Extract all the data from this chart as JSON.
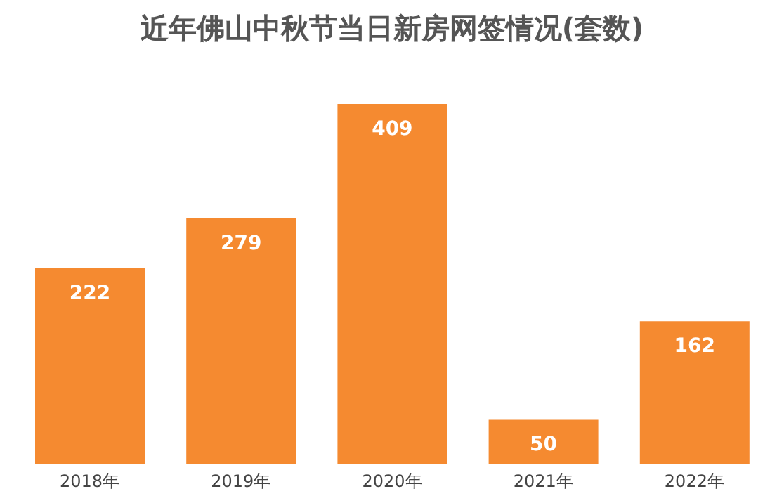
{
  "chart_data": {
    "type": "bar",
    "title": "近年佛山中秋节当日新房网签情况(套数)",
    "categories": [
      "2018年",
      "2019年",
      "2020年",
      "2021年",
      "2022年"
    ],
    "values": [
      222,
      279,
      409,
      50,
      162
    ],
    "color": "#f58a30",
    "data_labels": true,
    "grid": false,
    "legend": false
  }
}
